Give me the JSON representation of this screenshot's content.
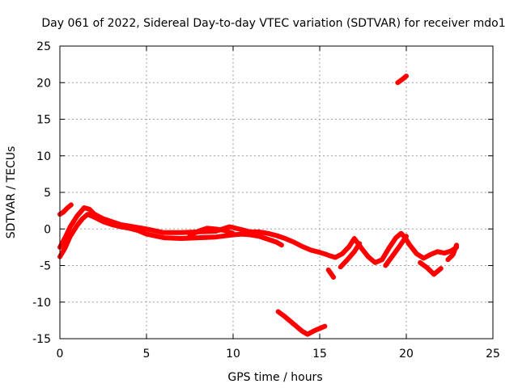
{
  "chart_data": {
    "type": "scatter",
    "title": "Day 061 of 2022, Sidereal Day-to-day VTEC variation (SDTVAR) for receiver mdo1",
    "xlabel": "GPS time / hours",
    "ylabel": "SDTVAR / TECUs",
    "xlim": [
      0,
      25
    ],
    "ylim": [
      -15,
      25
    ],
    "xticks": [
      0,
      5,
      10,
      15,
      20,
      25
    ],
    "yticks": [
      -15,
      -10,
      -5,
      0,
      5,
      10,
      15,
      20,
      25
    ],
    "grid": true,
    "series_color": "#ff0000",
    "series": [
      {
        "name": "main-track-upper",
        "x": [
          0.0,
          0.3,
          0.6,
          1.0,
          1.4,
          1.7,
          2.0,
          2.5,
          3.0,
          3.5,
          4.0,
          4.5,
          5.0,
          6.0,
          7.0,
          8.0,
          9.0,
          9.8,
          10.5,
          11.0,
          11.5,
          12.0,
          12.5,
          13.0,
          13.5,
          14.0,
          14.5,
          15.0,
          15.4
        ],
        "y": [
          -2.5,
          -1.2,
          0.3,
          1.8,
          2.9,
          2.7,
          2.0,
          1.4,
          1.0,
          0.6,
          0.4,
          0.2,
          0.0,
          -0.5,
          -0.5,
          -0.4,
          -0.3,
          0.3,
          -0.1,
          -0.4,
          -0.4,
          -0.6,
          -0.9,
          -1.3,
          -1.8,
          -2.4,
          -2.9,
          -3.2,
          -3.5
        ]
      },
      {
        "name": "main-track-lower",
        "x": [
          0.0,
          0.3,
          0.6,
          1.0,
          1.3,
          1.6,
          2.0,
          2.5,
          3.0,
          3.5,
          4.0,
          4.5,
          5.0,
          6.0,
          7.0,
          8.0,
          9.0,
          10.0,
          10.5,
          11.0,
          11.5,
          12.0,
          12.5,
          12.8
        ],
        "y": [
          -3.8,
          -2.6,
          -1.0,
          0.5,
          1.4,
          2.0,
          1.6,
          1.0,
          0.6,
          0.3,
          0.1,
          -0.2,
          -0.7,
          -1.2,
          -1.3,
          -1.2,
          -1.1,
          -0.8,
          -0.7,
          -0.8,
          -1.0,
          -1.4,
          -1.8,
          -2.2
        ]
      },
      {
        "name": "early-arc-start",
        "x": [
          0.0,
          0.2,
          0.4,
          0.65
        ],
        "y": [
          2.0,
          2.3,
          2.8,
          3.3
        ]
      },
      {
        "name": "mid-hump",
        "x": [
          7.5,
          8.0,
          8.5,
          9.0,
          9.5,
          10.0
        ],
        "y": [
          -0.9,
          -0.3,
          0.1,
          0.0,
          -0.2,
          -0.6
        ]
      },
      {
        "name": "late-wave",
        "x": [
          15.5,
          15.9,
          16.3,
          16.7,
          17.0,
          17.4,
          17.8,
          18.2,
          18.6,
          19.0,
          19.4,
          19.7,
          19.9,
          20.2,
          20.6,
          21.0,
          21.4,
          21.8,
          22.2,
          22.6,
          22.9
        ],
        "y": [
          -3.6,
          -3.9,
          -3.4,
          -2.4,
          -1.3,
          -2.6,
          -3.8,
          -4.6,
          -4.2,
          -2.6,
          -1.2,
          -0.6,
          -1.1,
          -2.2,
          -3.4,
          -4.0,
          -3.5,
          -3.1,
          -3.3,
          -3.0,
          -2.5
        ]
      },
      {
        "name": "late-branch-a",
        "x": [
          16.2,
          16.6,
          17.0,
          17.3
        ],
        "y": [
          -5.2,
          -4.2,
          -3.1,
          -2.0
        ]
      },
      {
        "name": "late-branch-b",
        "x": [
          18.8,
          19.2,
          19.6,
          20.0
        ],
        "y": [
          -5.0,
          -3.7,
          -2.4,
          -1.0
        ]
      },
      {
        "name": "late-branch-c",
        "x": [
          20.8,
          21.2,
          21.6,
          22.0
        ],
        "y": [
          -4.6,
          -5.3,
          -6.2,
          -5.4
        ]
      },
      {
        "name": "late-branch-d",
        "x": [
          22.4,
          22.7,
          22.9
        ],
        "y": [
          -4.2,
          -3.5,
          -2.2
        ]
      },
      {
        "name": "drop-segment",
        "x": [
          15.5,
          15.8
        ],
        "y": [
          -5.6,
          -6.6
        ]
      },
      {
        "name": "valley-segment",
        "x": [
          12.6,
          13.0,
          13.5,
          14.0,
          14.3,
          14.7,
          15.0,
          15.3
        ],
        "y": [
          -11.3,
          -12.0,
          -13.0,
          -14.0,
          -14.4,
          -13.9,
          -13.6,
          -13.3
        ]
      },
      {
        "name": "high-segment",
        "x": [
          19.5,
          19.8,
          20.0
        ],
        "y": [
          20.0,
          20.5,
          20.9
        ]
      }
    ]
  }
}
